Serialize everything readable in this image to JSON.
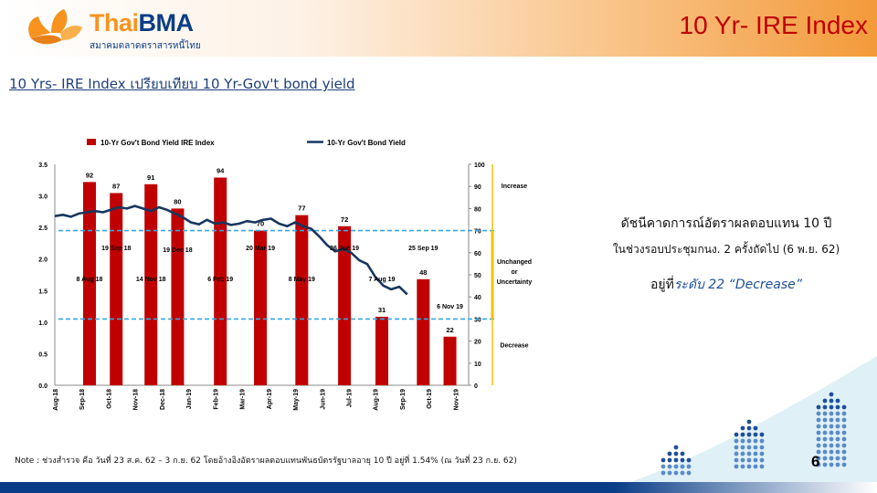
{
  "header": {
    "logo_text_1": "Thai",
    "logo_text_2": "BMA",
    "logo_sub": "สมาคมตลาดตราสารหนี้ไทย",
    "page_title": "10 Yr- IRE Index"
  },
  "subtitle": "10 Yrs- IRE Index เปรียบเทียบ 10 Yr-Gov't bond yield",
  "summary": {
    "line1": "ดัชนีคาดการณ์อัตราผลตอบแทน 10 ปี",
    "line2": "ในช่วงรอบประชุมกนง. 2 ครั้งถัดไป (6 พ.ย. 62)",
    "line3_prefix": "อยู่ที่",
    "line3_highlight": "ระดับ 22 “Decrease”"
  },
  "note": "Note : ช่วงสำรวจ คือ วันที่ 23 ส.ค. 62 – 3 ก.ย. 62 โดยอ้างอิงอัตราผลตอบแทนพันธบัตรรัฐบาลอายุ 10 ปี อยู่ที่ 1.54% (ณ วันที่ 23 ก.ย. 62)",
  "page_number": "6",
  "colors": {
    "bar": "#c00000",
    "line": "#17375e",
    "dashed": "#38a8e0",
    "bracket": "#f2c200",
    "title_red": "#c00000",
    "brand_blue": "#0a3d87",
    "brand_orange": "#f7931e"
  },
  "chart_data": {
    "type": "bar+line",
    "legend": {
      "bar_label": "10-Yr Gov't Bond Yield IRE Index",
      "line_label": "10-Yr Gov't Bond Yield",
      "placement": "top"
    },
    "x_tick_labels": [
      "Aug-18",
      "Sep-18",
      "Oct-18",
      "Nov-18",
      "Dec-18",
      "Jan-19",
      "Feb-19",
      "Mar-19",
      "Apr-19",
      "May-19",
      "Jun-19",
      "Jul-19",
      "Aug-19",
      "Sep-19",
      "Oct-19",
      "Nov-19"
    ],
    "x_range": [
      0,
      15.5
    ],
    "y_left": {
      "range": [
        0,
        3.5
      ],
      "ticks": [
        "0.0",
        "0.5",
        "1.0",
        "1.5",
        "2.0",
        "2.5",
        "3.0",
        "3.5"
      ]
    },
    "y_right": {
      "range": [
        0,
        100
      ],
      "ticks": [
        "0",
        "10",
        "20",
        "30",
        "40",
        "50",
        "60",
        "70",
        "80",
        "90",
        "100"
      ]
    },
    "dashed_levels_right": [
      70,
      30
    ],
    "zone_labels": [
      "Increase",
      "Unchanged or Uncertainty",
      "Decrease"
    ],
    "bars": [
      {
        "x": 1.3,
        "value": 92,
        "label": "92",
        "date": "8 Aug 18"
      },
      {
        "x": 2.3,
        "value": 87,
        "label": "87",
        "date": "19 Sep 18"
      },
      {
        "x": 3.6,
        "value": 91,
        "label": "91",
        "date": "14 Nov 18"
      },
      {
        "x": 4.6,
        "value": 80,
        "label": "80",
        "date": "19 Dec 18"
      },
      {
        "x": 6.2,
        "value": 94,
        "label": "94",
        "date": "6 Feb 19"
      },
      {
        "x": 7.7,
        "value": 70,
        "label": "70",
        "date": "20 Mar 19"
      },
      {
        "x": 9.25,
        "value": 77,
        "label": "77",
        "date": "8 May 19"
      },
      {
        "x": 10.85,
        "value": 72,
        "label": "72",
        "date": "26 Jun 19"
      },
      {
        "x": 12.25,
        "value": 31,
        "label": "31",
        "date": "7 Aug 19"
      },
      {
        "x": 13.8,
        "value": 48,
        "label": "48",
        "date": "25 Sep 19"
      },
      {
        "x": 14.8,
        "value": 22,
        "label": "22",
        "date": "6 Nov 19"
      }
    ],
    "line": {
      "x": [
        0,
        0.3,
        0.6,
        0.9,
        1.2,
        1.5,
        1.8,
        2.1,
        2.4,
        2.7,
        3.0,
        3.3,
        3.6,
        3.9,
        4.2,
        4.5,
        4.8,
        5.1,
        5.4,
        5.7,
        6.0,
        6.3,
        6.6,
        6.9,
        7.2,
        7.5,
        7.8,
        8.1,
        8.4,
        8.7,
        9.0,
        9.3,
        9.6,
        9.9,
        10.2,
        10.5,
        10.8,
        11.1,
        11.4,
        11.7,
        12.0,
        12.3,
        12.6,
        12.9,
        13.2
      ],
      "y": [
        2.68,
        2.7,
        2.67,
        2.72,
        2.74,
        2.76,
        2.74,
        2.78,
        2.82,
        2.8,
        2.84,
        2.8,
        2.76,
        2.82,
        2.78,
        2.72,
        2.66,
        2.58,
        2.55,
        2.62,
        2.56,
        2.58,
        2.54,
        2.56,
        2.6,
        2.58,
        2.62,
        2.64,
        2.56,
        2.52,
        2.58,
        2.52,
        2.48,
        2.36,
        2.22,
        2.12,
        2.16,
        2.1,
        1.98,
        1.92,
        1.72,
        1.58,
        1.52,
        1.56,
        1.44
      ]
    }
  }
}
